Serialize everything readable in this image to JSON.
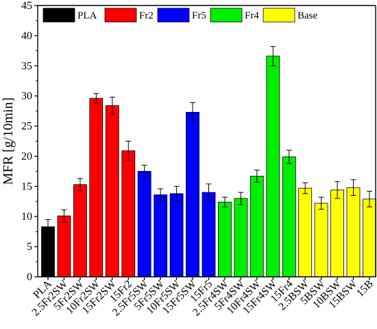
{
  "chart_data": {
    "type": "bar",
    "title": "",
    "xlabel": "",
    "ylabel": "MFR [g/10min]",
    "ylim": [
      0,
      45
    ],
    "yticks": [
      0,
      5,
      10,
      15,
      20,
      25,
      30,
      35,
      40,
      45
    ],
    "grid": false,
    "legend_position": "top",
    "legend": [
      {
        "name": "PLA",
        "color": "#000000"
      },
      {
        "name": "Fr2",
        "color": "#ff0000"
      },
      {
        "name": "Fr5",
        "color": "#0000ff"
      },
      {
        "name": "Fr4",
        "color": "#00ee00"
      },
      {
        "name": "Base",
        "color": "#ffff00"
      }
    ],
    "categories": [
      "PLA",
      "2.5Fr2SW",
      "5Fr2SW",
      "10Fr2SW",
      "15Fr2SW",
      "15Fr2",
      "2.5Fr5SW",
      "5Fr5SW",
      "10Fr5SW",
      "15Fr5SW",
      "15Fr5",
      "2.5Fr4SW",
      "5Fr4SW",
      "10Fr4SW",
      "15Fr4SW",
      "15Fr4",
      "2.5BSW",
      "5BSW",
      "10BSW",
      "15BSW",
      "15B"
    ],
    "values": [
      8.3,
      10.1,
      15.3,
      29.6,
      28.4,
      20.9,
      17.5,
      13.6,
      13.8,
      27.3,
      14.0,
      12.4,
      13.0,
      16.7,
      36.6,
      19.9,
      14.7,
      12.2,
      14.4,
      14.8,
      12.9
    ],
    "errors": [
      1.2,
      1.0,
      1.0,
      0.8,
      1.4,
      1.6,
      1.0,
      1.0,
      1.2,
      1.6,
      1.4,
      0.8,
      1.0,
      1.0,
      1.6,
      1.1,
      0.9,
      1.0,
      1.4,
      1.3,
      1.3
    ],
    "group": [
      "PLA",
      "Fr2",
      "Fr2",
      "Fr2",
      "Fr2",
      "Fr2",
      "Fr5",
      "Fr5",
      "Fr5",
      "Fr5",
      "Fr5",
      "Fr4",
      "Fr4",
      "Fr4",
      "Fr4",
      "Fr4",
      "Base",
      "Base",
      "Base",
      "Base",
      "Base"
    ]
  }
}
